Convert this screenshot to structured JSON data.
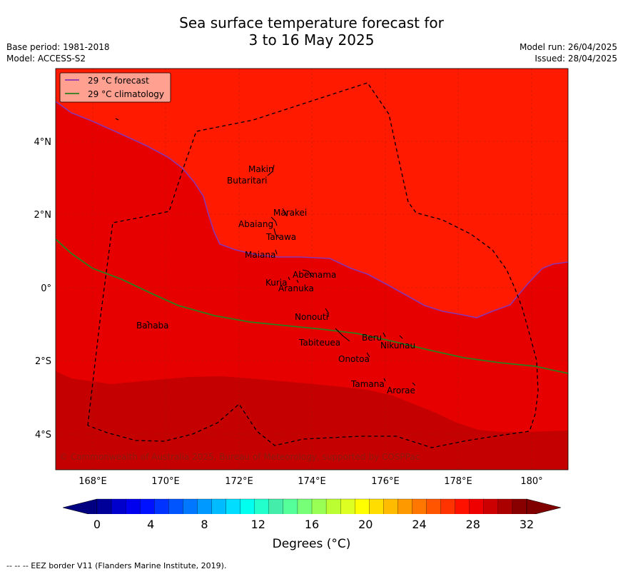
{
  "title": {
    "line1": "Sea surface temperature forecast for",
    "line2": "3 to 16 May 2025"
  },
  "meta_left": {
    "base_period": "Base period: 1981-2018",
    "model": "Model: ACCESS-S2"
  },
  "meta_right": {
    "model_run": "Model run: 26/04/2025",
    "issued": "Issued: 28/04/2025"
  },
  "legend": {
    "forecast": "29 °C  forecast",
    "climatology": "29 °C  climatology",
    "forecast_color": "#8b35b0",
    "climatology_color": "#2e7d1e"
  },
  "lat_ticks": [
    "4°N",
    "2°N",
    "0°",
    "2°S",
    "4°S"
  ],
  "lon_ticks": [
    "168°E",
    "170°E",
    "172°E",
    "174°E",
    "176°E",
    "178°E",
    "180°"
  ],
  "places": [
    {
      "name": "Makin"
    },
    {
      "name": "Butaritari"
    },
    {
      "name": "Marakei"
    },
    {
      "name": "Abaiang"
    },
    {
      "name": "Tarawa"
    },
    {
      "name": "Maiana"
    },
    {
      "name": "Abemama"
    },
    {
      "name": "Kuria"
    },
    {
      "name": "Aranuka"
    },
    {
      "name": "Banaba"
    },
    {
      "name": "Nonouti"
    },
    {
      "name": "Beru"
    },
    {
      "name": "Tabiteuea"
    },
    {
      "name": "Nikunau"
    },
    {
      "name": "Onotoa"
    },
    {
      "name": "Tamana"
    },
    {
      "name": "Arorae"
    }
  ],
  "copyright": "© Commonwealth of Australia 2025, Bureau of Meteorology, supported by COSPPac",
  "colorbar": {
    "labels": [
      "0",
      "4",
      "8",
      "12",
      "16",
      "20",
      "24",
      "28",
      "32"
    ],
    "title": "Degrees (°C)",
    "min": 0,
    "max": 32,
    "colors": [
      "#000099",
      "#0000cc",
      "#0000ee",
      "#0011ff",
      "#0033ff",
      "#0055ff",
      "#0077ff",
      "#0099ff",
      "#00bbff",
      "#00ddff",
      "#00ffee",
      "#22ffcc",
      "#44eeaa",
      "#55ff99",
      "#77ff77",
      "#99ff55",
      "#bbff33",
      "#ddff22",
      "#ffff00",
      "#ffdd00",
      "#ffbb00",
      "#ff9900",
      "#ff7700",
      "#ff5500",
      "#ff3300",
      "#ff1100",
      "#ee0000",
      "#cc0000",
      "#aa0000",
      "#880000"
    ],
    "under_color": "#000080",
    "over_color": "#800000"
  },
  "sst_colors": {
    "warm": "#ff1a00",
    "warmer": "#e60000",
    "warmest": "#c40000"
  },
  "footer": "--  --  -- EEZ border V11 (Flanders Marine Institute, 2019)."
}
